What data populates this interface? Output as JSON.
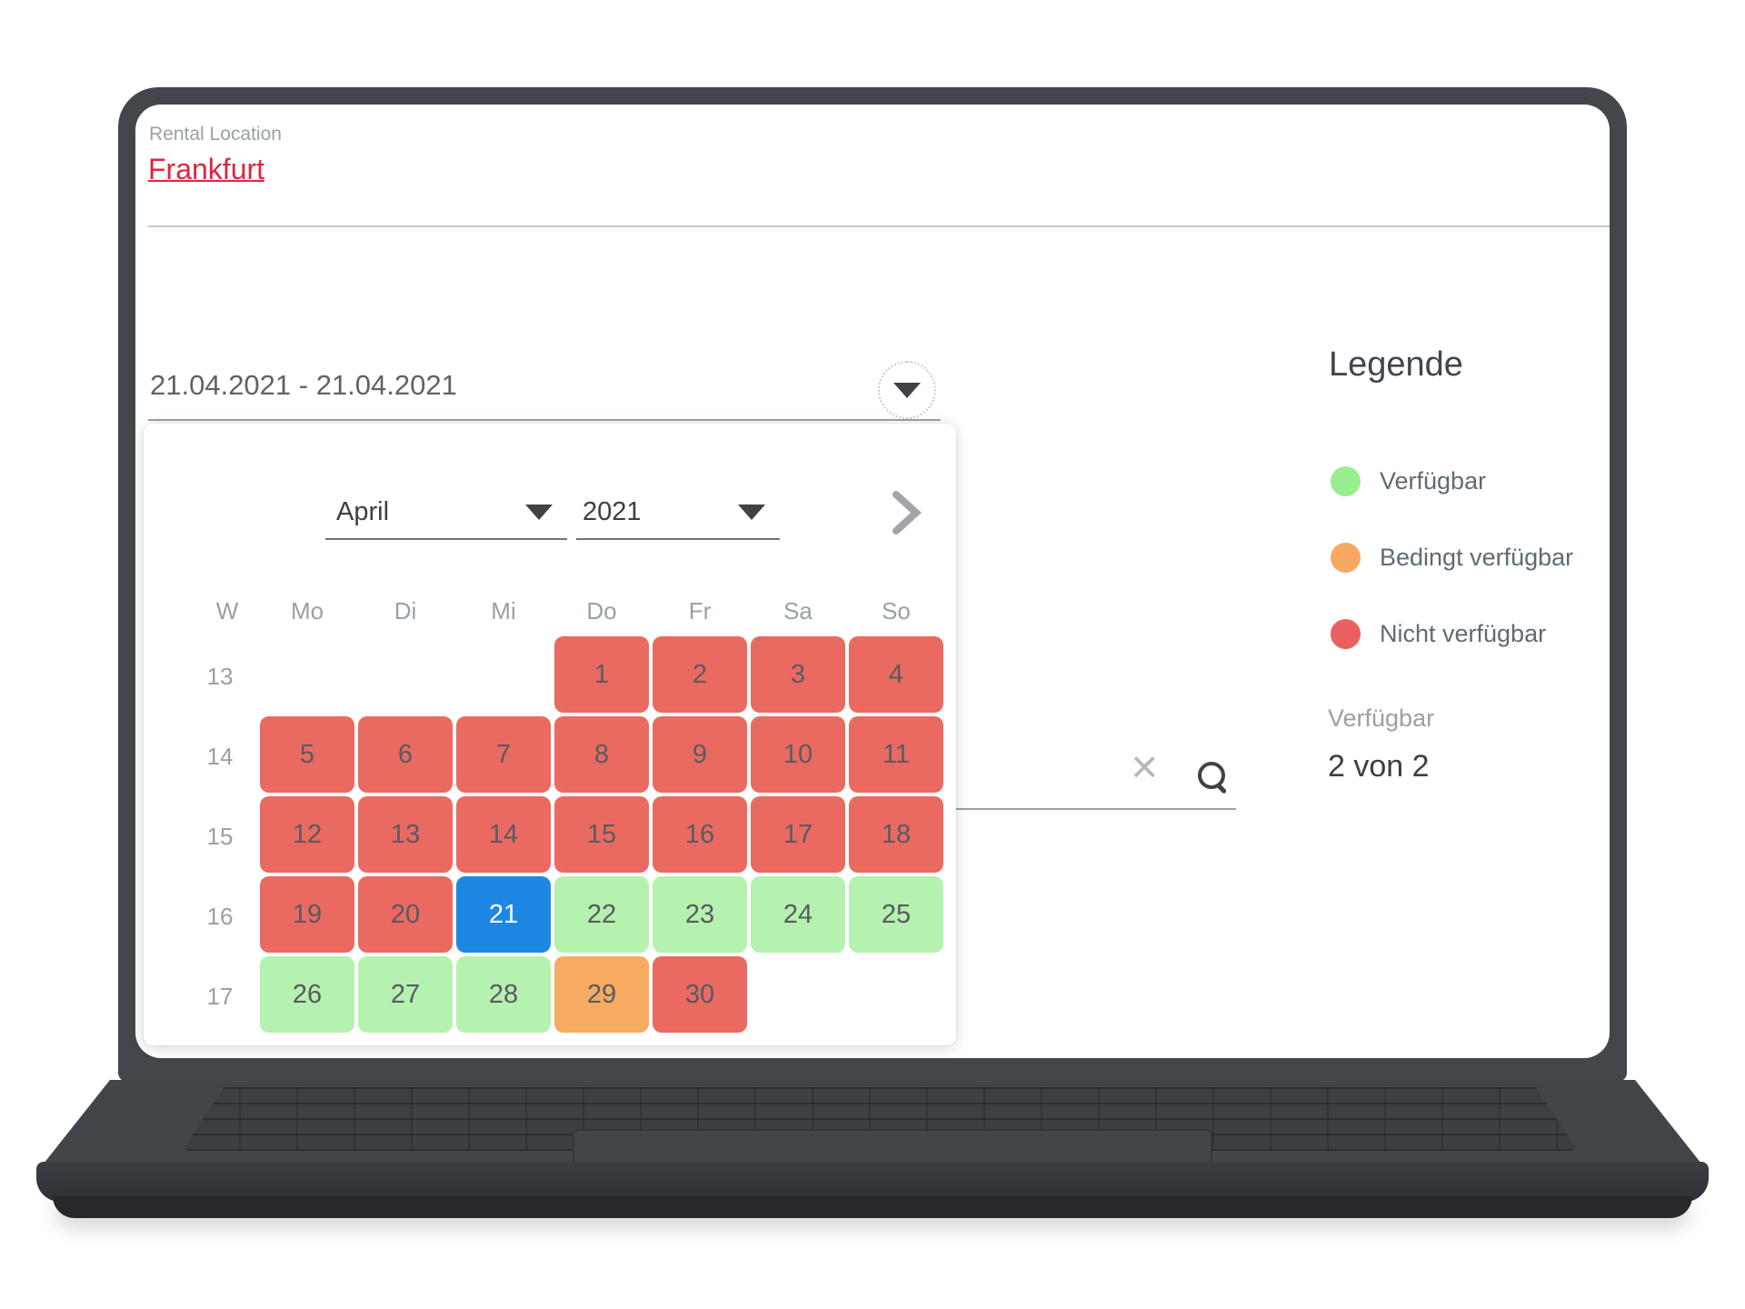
{
  "screen": {
    "rental_location": {
      "label": "Rental Location",
      "value": "Frankfurt"
    },
    "date_range": {
      "value": "21.04.2021 - 21.04.2021"
    },
    "calendar": {
      "month": "April",
      "year": "2021",
      "day_headers": [
        "W",
        "Mo",
        "Di",
        "Mi",
        "Do",
        "Fr",
        "Sa",
        "So"
      ],
      "rows": [
        {
          "week": "13",
          "days": [
            {
              "day": "",
              "status": "none"
            },
            {
              "day": "",
              "status": "none"
            },
            {
              "day": "",
              "status": "none"
            },
            {
              "day": "1",
              "status": "unavailable"
            },
            {
              "day": "2",
              "status": "unavailable"
            },
            {
              "day": "3",
              "status": "unavailable"
            },
            {
              "day": "4",
              "status": "unavailable"
            }
          ]
        },
        {
          "week": "14",
          "days": [
            {
              "day": "5",
              "status": "unavailable"
            },
            {
              "day": "6",
              "status": "unavailable"
            },
            {
              "day": "7",
              "status": "unavailable"
            },
            {
              "day": "8",
              "status": "unavailable"
            },
            {
              "day": "9",
              "status": "unavailable"
            },
            {
              "day": "10",
              "status": "unavailable"
            },
            {
              "day": "11",
              "status": "unavailable"
            }
          ]
        },
        {
          "week": "15",
          "days": [
            {
              "day": "12",
              "status": "unavailable"
            },
            {
              "day": "13",
              "status": "unavailable"
            },
            {
              "day": "14",
              "status": "unavailable"
            },
            {
              "day": "15",
              "status": "unavailable"
            },
            {
              "day": "16",
              "status": "unavailable"
            },
            {
              "day": "17",
              "status": "unavailable"
            },
            {
              "day": "18",
              "status": "unavailable"
            }
          ]
        },
        {
          "week": "16",
          "days": [
            {
              "day": "19",
              "status": "unavailable"
            },
            {
              "day": "20",
              "status": "unavailable"
            },
            {
              "day": "21",
              "status": "selected"
            },
            {
              "day": "22",
              "status": "available"
            },
            {
              "day": "23",
              "status": "available"
            },
            {
              "day": "24",
              "status": "available"
            },
            {
              "day": "25",
              "status": "available"
            }
          ]
        },
        {
          "week": "17",
          "days": [
            {
              "day": "26",
              "status": "available"
            },
            {
              "day": "27",
              "status": "available"
            },
            {
              "day": "28",
              "status": "available"
            },
            {
              "day": "29",
              "status": "conditional"
            },
            {
              "day": "30",
              "status": "unavailable"
            },
            {
              "day": "",
              "status": "none"
            },
            {
              "day": "",
              "status": "none"
            }
          ]
        }
      ]
    },
    "legend": {
      "title": "Legende",
      "items": [
        {
          "label": "Verfügbar",
          "color": "#97ee8f"
        },
        {
          "label": "Bedingt verfügbar",
          "color": "#f6a860"
        },
        {
          "label": "Nicht verfügbar",
          "color": "#ea5f60"
        }
      ]
    },
    "availability": {
      "label": "Verfügbar",
      "value": "2 von 2"
    },
    "icons": {
      "clear": "×"
    },
    "colors": {
      "unavailable_red": "#ea6a61",
      "available_green": "#b5f1af",
      "conditional_orange": "#f7aa61",
      "selected_blue": "#1e87e4",
      "selected_text": "#ffffff",
      "frankfurt_red": "#e2243f"
    }
  }
}
